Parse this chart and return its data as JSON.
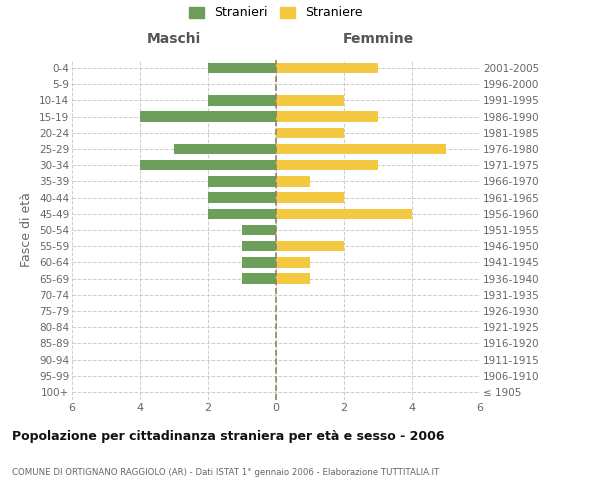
{
  "age_groups": [
    "100+",
    "95-99",
    "90-94",
    "85-89",
    "80-84",
    "75-79",
    "70-74",
    "65-69",
    "60-64",
    "55-59",
    "50-54",
    "45-49",
    "40-44",
    "35-39",
    "30-34",
    "25-29",
    "20-24",
    "15-19",
    "10-14",
    "5-9",
    "0-4"
  ],
  "birth_years": [
    "≤ 1905",
    "1906-1910",
    "1911-1915",
    "1916-1920",
    "1921-1925",
    "1926-1930",
    "1931-1935",
    "1936-1940",
    "1941-1945",
    "1946-1950",
    "1951-1955",
    "1956-1960",
    "1961-1965",
    "1966-1970",
    "1971-1975",
    "1976-1980",
    "1981-1985",
    "1986-1990",
    "1991-1995",
    "1996-2000",
    "2001-2005"
  ],
  "males": [
    0,
    0,
    0,
    0,
    0,
    0,
    0,
    1,
    1,
    1,
    1,
    2,
    2,
    2,
    4,
    3,
    0,
    4,
    2,
    0,
    2
  ],
  "females": [
    0,
    0,
    0,
    0,
    0,
    0,
    0,
    1,
    1,
    2,
    0,
    4,
    2,
    1,
    3,
    5,
    2,
    3,
    2,
    0,
    3
  ],
  "male_color": "#6d9e5a",
  "female_color": "#f5c842",
  "male_label": "Stranieri",
  "female_label": "Straniere",
  "title": "Popolazione per cittadinanza straniera per età e sesso - 2006",
  "subtitle": "COMUNE DI ORTIGNANO RAGGIOLO (AR) - Dati ISTAT 1° gennaio 2006 - Elaborazione TUTTITALIA.IT",
  "xlabel_left": "Maschi",
  "xlabel_right": "Femmine",
  "ylabel_left": "Fasce di età",
  "xlim": 6,
  "background_color": "#ffffff",
  "grid_color": "#cccccc"
}
